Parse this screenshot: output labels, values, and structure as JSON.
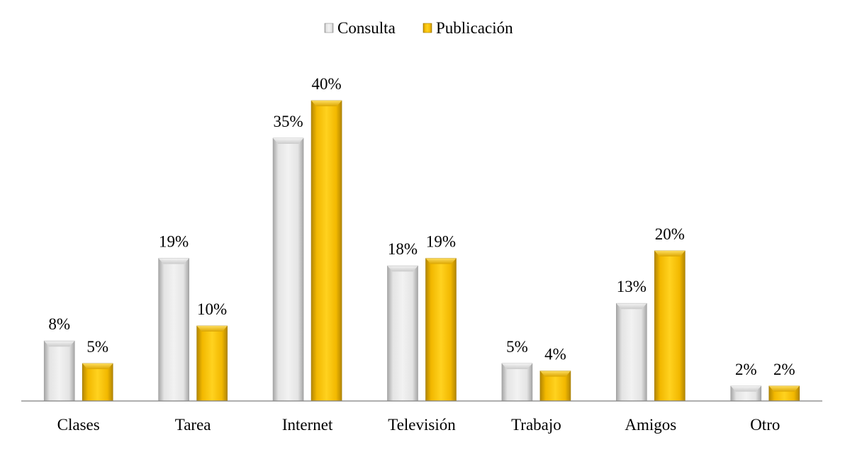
{
  "chart_data": {
    "type": "bar",
    "title": "",
    "xlabel": "",
    "ylabel": "",
    "categories": [
      "Clases",
      "Tarea",
      "Internet",
      "Televisión",
      "Trabajo",
      "Amigos",
      "Otro"
    ],
    "series": [
      {
        "name": "Consulta",
        "values": [
          8,
          19,
          35,
          18,
          5,
          13,
          2
        ],
        "labels": [
          "8%",
          "19%",
          "35%",
          "18%",
          "5%",
          "13%",
          "2%"
        ],
        "color": "#d9d9d9"
      },
      {
        "name": "Publicación",
        "values": [
          5,
          10,
          40,
          19,
          4,
          20,
          2
        ],
        "labels": [
          "5%",
          "10%",
          "40%",
          "19%",
          "4%",
          "20%",
          "2%"
        ],
        "color": "#ffc000"
      }
    ],
    "ylim": [
      0,
      40
    ],
    "grid": false,
    "legend": "top-center",
    "value_unit": "%"
  }
}
